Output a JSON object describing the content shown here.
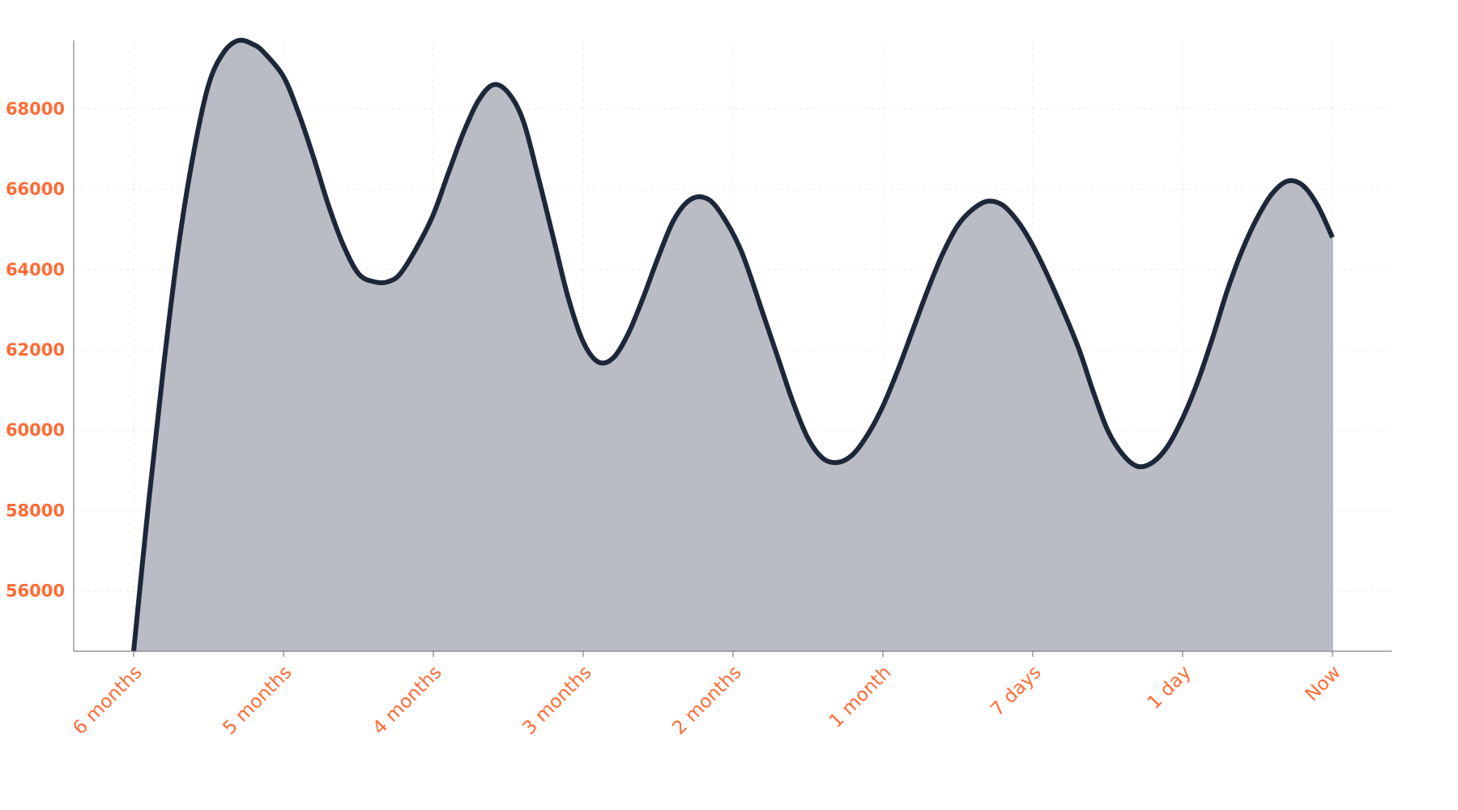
{
  "chart_data": {
    "type": "area",
    "title": "",
    "xlabel": "",
    "ylabel": "",
    "categories": [
      "6 months",
      "5 months",
      "4 months",
      "3 months",
      "2 months",
      "1 month",
      "7 days",
      "1 day",
      "Now"
    ],
    "ylim": [
      54500,
      69700
    ],
    "yticks": [
      "56000",
      "58000",
      "60000",
      "62000",
      "64000",
      "66000",
      "68000"
    ],
    "grid": true,
    "legend": "none",
    "series": [
      {
        "x": [
          0,
          0.1,
          0.2,
          0.3,
          0.4,
          0.5,
          0.6,
          0.7,
          0.8,
          0.87,
          1.0,
          1.1,
          1.2,
          1.3,
          1.4,
          1.5,
          1.6,
          1.7,
          1.8,
          1.98,
          2.1,
          2.2,
          2.3,
          2.4,
          2.5,
          2.6,
          2.7,
          2.8,
          2.9,
          3.0,
          3.1,
          3.2,
          3.3,
          3.4,
          3.5,
          3.6,
          3.7,
          3.8,
          3.9,
          4.05,
          4.2,
          4.3,
          4.4,
          4.5,
          4.6,
          4.7,
          4.8,
          4.9,
          5.0,
          5.1,
          5.2,
          5.3,
          5.4,
          5.5,
          5.6,
          5.7,
          5.8,
          5.9,
          6.0,
          6.13,
          6.3,
          6.4,
          6.5,
          6.6,
          6.7,
          6.8,
          6.9,
          7.0,
          7.1,
          7.2,
          7.3,
          7.4,
          7.5,
          7.6,
          7.7,
          7.8,
          7.9,
          8.0
        ],
        "values": [
          54500,
          58200,
          61600,
          64600,
          66900,
          68600,
          69400,
          69700,
          69600,
          69400,
          68800,
          67900,
          66800,
          65600,
          64600,
          63900,
          63700,
          63700,
          64000,
          65200,
          66400,
          67400,
          68200,
          68600,
          68400,
          67700,
          66300,
          64800,
          63300,
          62200,
          61700,
          61800,
          62400,
          63300,
          64300,
          65200,
          65700,
          65800,
          65500,
          64500,
          62900,
          61800,
          60700,
          59800,
          59300,
          59200,
          59400,
          59900,
          60600,
          61500,
          62500,
          63500,
          64400,
          65100,
          65500,
          65700,
          65600,
          65200,
          64600,
          63600,
          62100,
          61000,
          60000,
          59400,
          59100,
          59200,
          59600,
          60300,
          61200,
          62300,
          63500,
          64500,
          65300,
          65900,
          66200,
          66100,
          65600,
          64800
        ]
      }
    ],
    "colors": {
      "line": "#1e2738",
      "fill": "#b9bcc4",
      "tick_text": "#ff6b35",
      "axis": "#808080",
      "grid": "#ececec"
    }
  }
}
